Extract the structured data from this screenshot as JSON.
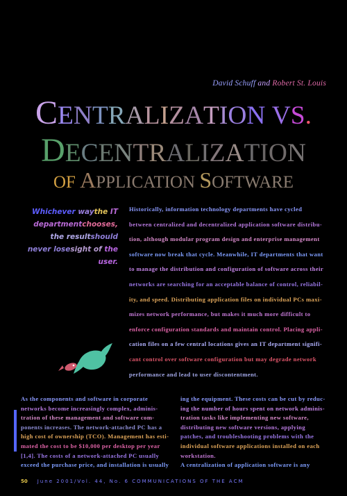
{
  "authors": {
    "author1": "David Schuff",
    "conj": "and",
    "author2": "Robert St. Louis"
  },
  "title": {
    "line1": [
      {
        "text": "C",
        "color": "#c9a3ea",
        "small": false
      },
      {
        "text": "E",
        "color": "#9a88f0",
        "small": true
      },
      {
        "text": "N",
        "color": "#8f7fc8",
        "small": true
      },
      {
        "text": "T",
        "color": "#7d92c0",
        "small": true
      },
      {
        "text": "R",
        "color": "#86a7b8",
        "small": true
      },
      {
        "text": "A",
        "color": "#a89aa9",
        "small": true
      },
      {
        "text": "L",
        "color": "#b7949e",
        "small": true
      },
      {
        "text": "I",
        "color": "#c4a08e",
        "small": true
      },
      {
        "text": "Z",
        "color": "#b38f9f",
        "small": true
      },
      {
        "text": "A",
        "color": "#a787aa",
        "small": true
      },
      {
        "text": "T",
        "color": "#c69ec0",
        "small": true
      },
      {
        "text": "I",
        "color": "#a78bd0",
        "small": true
      },
      {
        "text": "O",
        "color": "#9a7fe0",
        "small": true
      },
      {
        "text": "N",
        "color": "#8a70f0",
        "small": true
      },
      {
        "text": " ",
        "color": "#000000",
        "small": true
      },
      {
        "text": "V",
        "color": "#9a6fe8",
        "small": true
      },
      {
        "text": "S",
        "color": "#c64ad8",
        "small": true
      },
      {
        "text": ".",
        "color": "#f0566a",
        "small": true
      }
    ],
    "line2": [
      {
        "text": "D",
        "color": "#58a06a",
        "small": false
      },
      {
        "text": "E",
        "color": "#5e8c6a",
        "small": true
      },
      {
        "text": "C",
        "color": "#6a7d82",
        "small": true
      },
      {
        "text": "E",
        "color": "#6c7a72",
        "small": true
      },
      {
        "text": "N",
        "color": "#7b8580",
        "small": true
      },
      {
        "text": "T",
        "color": "#8c7c78",
        "small": true
      },
      {
        "text": "R",
        "color": "#9b8a7a",
        "small": true
      },
      {
        "text": "A",
        "color": "#6d6d72",
        "small": true
      },
      {
        "text": "L",
        "color": "#6a6860",
        "small": true
      },
      {
        "text": "I",
        "color": "#737073",
        "small": true
      },
      {
        "text": "Z",
        "color": "#82767a",
        "small": true
      },
      {
        "text": "A",
        "color": "#9a8c88",
        "small": true
      },
      {
        "text": "T",
        "color": "#6b6a6c",
        "small": true
      },
      {
        "text": "I",
        "color": "#696565",
        "small": true
      },
      {
        "text": "O",
        "color": "#6f6a6a",
        "small": true
      },
      {
        "text": "N",
        "color": "#777373",
        "small": true
      }
    ],
    "line3": [
      {
        "text": "OF",
        "color": "#d3a042",
        "small": true
      },
      {
        "text": " ",
        "color": "#000000",
        "small": true
      },
      {
        "text": "A",
        "color": "#9a7a5e",
        "small": false
      },
      {
        "text": "PPLICATION",
        "color": "#8a7a6e",
        "small": true
      },
      {
        "text": " ",
        "color": "#000000",
        "small": true
      },
      {
        "text": "S",
        "color": "#b59a5e",
        "small": false
      },
      {
        "text": "OFTWARE",
        "color": "#8a7c70",
        "small": true
      }
    ]
  },
  "pullquote": {
    "lines": [
      [
        {
          "text": "Whichever ",
          "color": "#5d5dff"
        },
        {
          "text": "way",
          "color": "#9a7fe0"
        }
      ],
      [
        {
          "text": "the ",
          "color": "#e2c35a"
        },
        {
          "text": "IT department",
          "color": "#b96ad6"
        }
      ],
      [
        {
          "text": "chooses, ",
          "color": "#e06a98"
        },
        {
          "text": "the result",
          "color": "#b0a8e8"
        }
      ],
      [
        {
          "text": "should never lose",
          "color": "#8f7fd8"
        }
      ],
      [
        {
          "text": "sight of ",
          "color": "#b59ad0"
        },
        {
          "text": "the user.",
          "color": "#b865e0"
        }
      ]
    ]
  },
  "body_main": {
    "lines": [
      [
        {
          "text": "Historically, information technology departments have cycled",
          "color": "#8c9aff"
        }
      ],
      [
        {
          "text": "between centralized and decentralized application software distribu-",
          "color": "#b87ae0"
        }
      ],
      [
        {
          "text": "tion, although modular program design and enterprise management",
          "color": "#d88acb"
        }
      ],
      [
        {
          "text": "software now break that cycle. Meanwhile, IT departments that want",
          "color": "#7f9eff"
        }
      ],
      [
        {
          "text": "to manage the distribution and configuration of software across their",
          "color": "#c483e6"
        }
      ],
      [
        {
          "text": "networks are searching for an acceptable balance of control, reliabil-",
          "color": "#9b78e8"
        }
      ],
      [
        {
          "text": "ity, and speed. Distributing application files on individual PCs maxi-",
          "color": "#e0a65a"
        }
      ],
      [
        {
          "text": "mizes network performance, but makes it much more difficult to",
          "color": "#c67ad8"
        }
      ],
      [
        {
          "text": "enforce configuration standards and maintain control. Placing appli-",
          "color": "#e064a8"
        }
      ],
      [
        {
          "text": "cation files on a few central locations gives an IT department signifi-",
          "color": "#b2b2ff"
        }
      ],
      [
        {
          "text": "cant control over software configuration but may degrade network",
          "color": "#e0566a"
        }
      ],
      [
        {
          "text": "performance and lead to user discontentment.",
          "color": "#a3a8e8"
        }
      ]
    ]
  },
  "body_col1": {
    "lines": [
      [
        {
          "text": "As the components and software in corporate",
          "color": "#8c9aff"
        }
      ],
      [
        {
          "text": "networks become increasingly complex, adminis-",
          "color": "#b87ae0"
        }
      ],
      [
        {
          "text": "tration of these management and software com-",
          "color": "#d88acb"
        }
      ],
      [
        {
          "text": "ponents increases. The network-attached PC has a",
          "color": "#8f8fd8"
        }
      ],
      [
        {
          "text": "high cost of ownership (TCO). Management has esti-",
          "color": "#e0a65a"
        }
      ],
      [
        {
          "text": "mated the cost to be $10,000 per desktop per year",
          "color": "#e064a8"
        }
      ],
      [
        {
          "text": "[1,4]. The costs of a network-attached PC usually",
          "color": "#9b78e8"
        }
      ],
      [
        {
          "text": "exceed the purchase price, and installation is usually low.",
          "color": "#7f9eff"
        }
      ]
    ]
  },
  "body_col2": {
    "lines": [
      [
        {
          "text": "ing the equipment. These costs can be cut by reduc-",
          "color": "#8c9aff"
        }
      ],
      [
        {
          "text": "ing the number of hours spent on network adminis-",
          "color": "#c483e6"
        }
      ],
      [
        {
          "text": "tration tasks like implementing new software,",
          "color": "#d88acb"
        }
      ],
      [
        {
          "text": "distributing new software versions, applying",
          "color": "#b87ae0"
        }
      ],
      [
        {
          "text": "patches, and troubleshooting problems with the",
          "color": "#9b78e8"
        }
      ],
      [
        {
          "text": "individual software applications installed on each",
          "color": "#e0a65a"
        }
      ],
      [
        {
          "text": "workstation.",
          "color": "#c67ad8"
        }
      ],
      [
        {
          "text": "A centralization of application software is any",
          "color": "#7f9eff"
        }
      ]
    ]
  },
  "footer": {
    "page_number": "50",
    "journal_line": "June 2001/Vol. 44, No. 6 COMMUNICATIONS OF THE ACM"
  }
}
